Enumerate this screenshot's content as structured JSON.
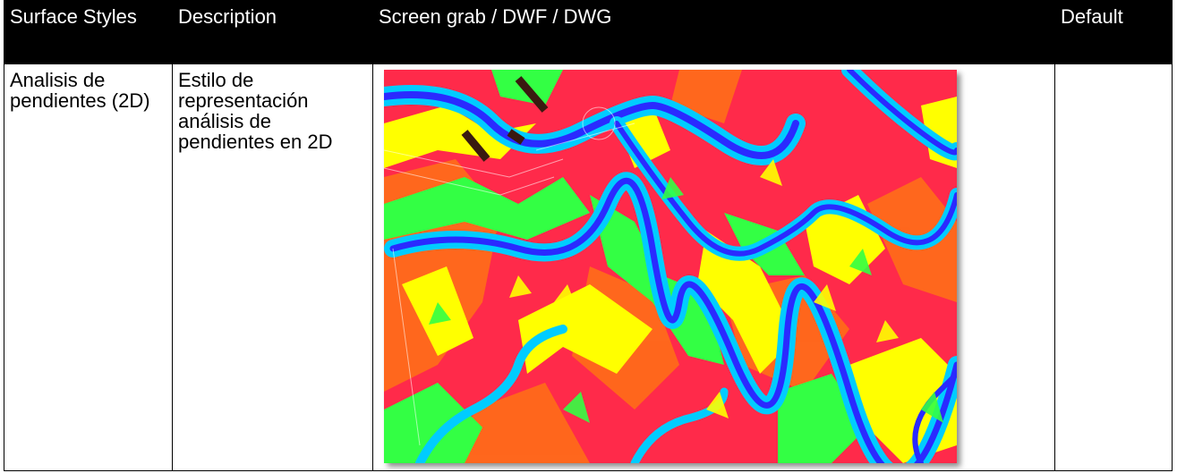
{
  "table": {
    "headers": {
      "surface_styles": "Surface Styles",
      "description": "Description",
      "screen_grab": "Screen grab / DWF / DWG",
      "default": "Default"
    },
    "rows": [
      {
        "surface_style": "Analisis de pendientes (2D)",
        "description": "Estilo de representación análisis de pendientes en 2D",
        "screen_grab_image": "slope-analysis-2d-surface-image",
        "default": ""
      }
    ]
  },
  "colors": {
    "header_bg": "#000000",
    "header_text": "#ffffff",
    "slope_red": "#ff2a4a",
    "slope_orange": "#ff6a1a",
    "slope_yellow": "#ffff00",
    "slope_green": "#33ff44",
    "slope_cyan": "#00ccff",
    "slope_blue": "#2a2aff"
  }
}
